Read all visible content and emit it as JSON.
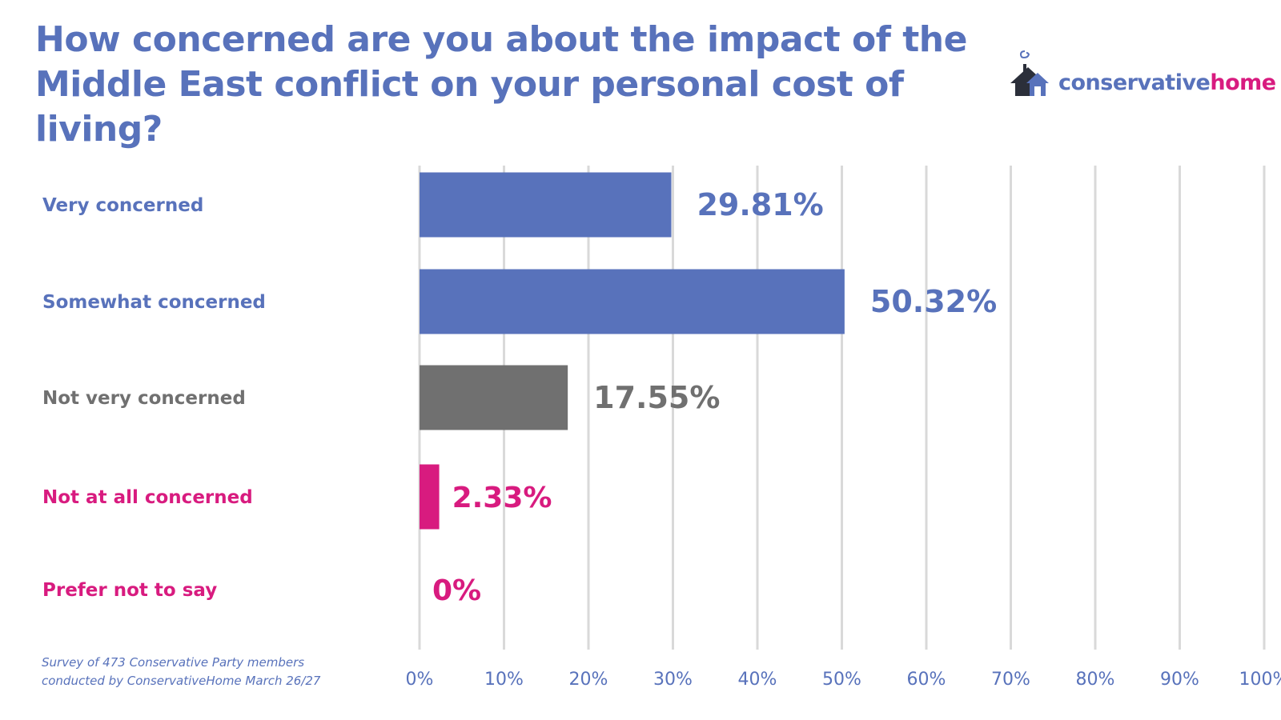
{
  "title": "How concerned are you about the impact of the Middle East conflict on your personal cost of living?",
  "logo": {
    "part1": "conservative",
    "part2": "home"
  },
  "footnote": {
    "line1": "Survey of 473 Conservative Party members",
    "line2": "conducted by ConservativeHome March 26/27"
  },
  "colors": {
    "blue": "#5872bb",
    "grey": "#707070",
    "pink": "#d81b7f",
    "gridline": "#d9d9d9"
  },
  "chart_data": {
    "type": "bar",
    "orientation": "horizontal",
    "title": "How concerned are you about the impact of the Middle East conflict on your personal cost of living?",
    "categories": [
      "Very concerned",
      "Somewhat concerned",
      "Not very concerned",
      "Not at all concerned",
      "Prefer not to say"
    ],
    "values": [
      29.81,
      50.32,
      17.55,
      2.33,
      0
    ],
    "value_labels": [
      "29.81%",
      "50.32%",
      "17.55%",
      "2.33%",
      "0%"
    ],
    "bar_colors": [
      "#5872bb",
      "#5872bb",
      "#707070",
      "#d81b7f",
      "#d81b7f"
    ],
    "xlim": [
      0,
      100
    ],
    "x_ticks": [
      0,
      10,
      20,
      30,
      40,
      50,
      60,
      70,
      80,
      90,
      100
    ],
    "x_tick_labels": [
      "0%",
      "10%",
      "20%",
      "30%",
      "40%",
      "50%",
      "60%",
      "70%",
      "80%",
      "90%",
      "100%"
    ],
    "xlabel": "",
    "ylabel": "",
    "grid": true,
    "legend": "none"
  }
}
